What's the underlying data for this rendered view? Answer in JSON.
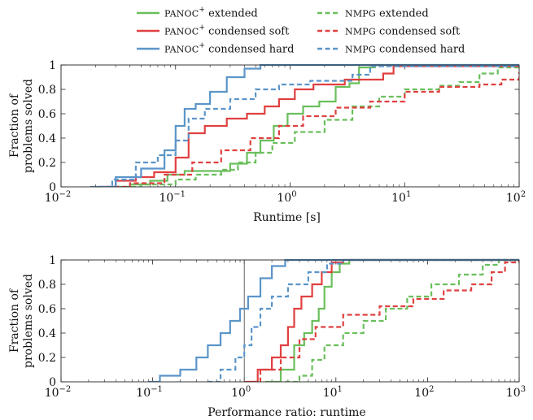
{
  "legend": [
    {
      "prefix": "PANOC",
      "sup": "+",
      "text": " extended",
      "color": "#6abf5c",
      "dash": false
    },
    {
      "prefix": "NMPG",
      "sup": "",
      "text": " extended",
      "color": "#6abf5c",
      "dash": true
    },
    {
      "prefix": "PANOC",
      "sup": "+",
      "text": " condensed soft",
      "color": "#e04040",
      "dash": false
    },
    {
      "prefix": "NMPG",
      "sup": "",
      "text": " condensed soft",
      "color": "#e04040",
      "dash": true
    },
    {
      "prefix": "PANOC",
      "sup": "+",
      "text": " condensed hard",
      "color": "#5b95c9",
      "dash": false
    },
    {
      "prefix": "NMPG",
      "sup": "",
      "text": " condensed hard",
      "color": "#5b95c9",
      "dash": true
    }
  ],
  "chart_data": [
    {
      "type": "line",
      "xscale": "log",
      "xlim": [
        0.01,
        100
      ],
      "ylim": [
        0,
        1
      ],
      "xticks": [
        {
          "v": 0.01,
          "base": "10",
          "exp": "−2"
        },
        {
          "v": 0.1,
          "base": "10",
          "exp": "−1"
        },
        {
          "v": 1,
          "base": "10",
          "exp": "0"
        },
        {
          "v": 10,
          "base": "10",
          "exp": "1"
        },
        {
          "v": 100,
          "base": "10",
          "exp": "2"
        }
      ],
      "yticks": [
        "0",
        "0.2",
        "0.4",
        "0.6",
        "0.8",
        "1"
      ],
      "xlabel": "Runtime [s]",
      "ylabel": [
        "Fraction of",
        "problems solved"
      ],
      "series": [
        {
          "name": "PANOC+ extended",
          "color": "#6abf5c",
          "dash": false,
          "points": [
            [
              0.028,
              0
            ],
            [
              0.04,
              0.02
            ],
            [
              0.06,
              0.05
            ],
            [
              0.085,
              0.1
            ],
            [
              0.12,
              0.13
            ],
            [
              0.2,
              0.13
            ],
            [
              0.3,
              0.19
            ],
            [
              0.42,
              0.28
            ],
            [
              0.55,
              0.38
            ],
            [
              0.72,
              0.5
            ],
            [
              0.95,
              0.6
            ],
            [
              1.3,
              0.66
            ],
            [
              1.8,
              0.7
            ],
            [
              2.5,
              0.82
            ],
            [
              3.3,
              0.85
            ],
            [
              4.0,
              0.98
            ],
            [
              5.5,
              1.0
            ],
            [
              100,
              1.0
            ]
          ]
        },
        {
          "name": "NMPG extended",
          "color": "#6abf5c",
          "dash": true,
          "points": [
            [
              0.03,
              0
            ],
            [
              0.05,
              0.02
            ],
            [
              0.1,
              0.06
            ],
            [
              0.15,
              0.1
            ],
            [
              0.25,
              0.14
            ],
            [
              0.35,
              0.2
            ],
            [
              0.5,
              0.28
            ],
            [
              0.7,
              0.36
            ],
            [
              1.1,
              0.45
            ],
            [
              2.0,
              0.55
            ],
            [
              3.5,
              0.66
            ],
            [
              6.0,
              0.74
            ],
            [
              10,
              0.8
            ],
            [
              20,
              0.83
            ],
            [
              30,
              0.86
            ],
            [
              45,
              0.93
            ],
            [
              65,
              0.98
            ],
            [
              100,
              0.98
            ]
          ]
        },
        {
          "name": "PANOC+ condensed soft",
          "color": "#e04040",
          "dash": false,
          "points": [
            [
              0.022,
              0
            ],
            [
              0.03,
              0.05
            ],
            [
              0.045,
              0.08
            ],
            [
              0.065,
              0.12
            ],
            [
              0.1,
              0.24
            ],
            [
              0.13,
              0.44
            ],
            [
              0.18,
              0.5
            ],
            [
              0.28,
              0.56
            ],
            [
              0.42,
              0.6
            ],
            [
              0.6,
              0.66
            ],
            [
              0.8,
              0.72
            ],
            [
              1.1,
              0.8
            ],
            [
              1.6,
              0.84
            ],
            [
              3.0,
              0.88
            ],
            [
              6.5,
              0.93
            ],
            [
              8.0,
              0.99
            ],
            [
              100,
              1.0
            ]
          ]
        },
        {
          "name": "NMPG condensed soft",
          "color": "#e04040",
          "dash": true,
          "points": [
            [
              0.025,
              0
            ],
            [
              0.04,
              0.03
            ],
            [
              0.08,
              0.1
            ],
            [
              0.14,
              0.2
            ],
            [
              0.25,
              0.3
            ],
            [
              0.45,
              0.4
            ],
            [
              0.8,
              0.5
            ],
            [
              1.3,
              0.58
            ],
            [
              2.5,
              0.65
            ],
            [
              5,
              0.7
            ],
            [
              10,
              0.78
            ],
            [
              20,
              0.82
            ],
            [
              45,
              0.84
            ],
            [
              70,
              0.88
            ],
            [
              100,
              0.94
            ]
          ]
        },
        {
          "name": "PANOC+ condensed hard",
          "color": "#5b95c9",
          "dash": false,
          "points": [
            [
              0.02,
              0
            ],
            [
              0.03,
              0.08
            ],
            [
              0.05,
              0.15
            ],
            [
              0.08,
              0.3
            ],
            [
              0.1,
              0.5
            ],
            [
              0.12,
              0.64
            ],
            [
              0.15,
              0.68
            ],
            [
              0.2,
              0.78
            ],
            [
              0.28,
              0.9
            ],
            [
              0.4,
              0.97
            ],
            [
              0.55,
              1.0
            ],
            [
              100,
              1.0
            ]
          ]
        },
        {
          "name": "NMPG condensed hard",
          "color": "#5b95c9",
          "dash": true,
          "points": [
            [
              0.018,
              0
            ],
            [
              0.028,
              0.06
            ],
            [
              0.045,
              0.2
            ],
            [
              0.07,
              0.26
            ],
            [
              0.1,
              0.38
            ],
            [
              0.13,
              0.56
            ],
            [
              0.18,
              0.64
            ],
            [
              0.3,
              0.72
            ],
            [
              0.5,
              0.8
            ],
            [
              0.8,
              0.84
            ],
            [
              1.5,
              0.87
            ],
            [
              3.5,
              0.92
            ],
            [
              5,
              0.99
            ],
            [
              100,
              1.0
            ]
          ]
        }
      ]
    },
    {
      "type": "line",
      "xscale": "log",
      "xlim": [
        0.01,
        1000
      ],
      "ylim": [
        0,
        1
      ],
      "vline": 1,
      "xticks": [
        {
          "v": 0.01,
          "base": "10",
          "exp": "−2"
        },
        {
          "v": 0.1,
          "base": "10",
          "exp": "−1"
        },
        {
          "v": 1,
          "base": "10",
          "exp": "0"
        },
        {
          "v": 10,
          "base": "10",
          "exp": "1"
        },
        {
          "v": 100,
          "base": "10",
          "exp": "2"
        },
        {
          "v": 1000,
          "base": "10",
          "exp": "3"
        }
      ],
      "yticks": [
        "0",
        "0.2",
        "0.4",
        "0.6",
        "0.8",
        "1"
      ],
      "xlabel": "Performance ratio: runtime",
      "ylabel": [
        "Fraction of",
        "problems solved"
      ],
      "series": [
        {
          "name": "PANOC+ extended",
          "color": "#6abf5c",
          "dash": false,
          "points": [
            [
              1.7,
              0
            ],
            [
              2.5,
              0.1
            ],
            [
              3.5,
              0.3
            ],
            [
              4.5,
              0.4
            ],
            [
              5.5,
              0.5
            ],
            [
              6.5,
              0.6
            ],
            [
              7.5,
              0.78
            ],
            [
              9,
              0.9
            ],
            [
              11,
              0.97
            ],
            [
              14,
              1.0
            ],
            [
              1000,
              1.0
            ]
          ]
        },
        {
          "name": "NMPG extended",
          "color": "#6abf5c",
          "dash": true,
          "points": [
            [
              2.8,
              0
            ],
            [
              4,
              0.05
            ],
            [
              5.5,
              0.18
            ],
            [
              7.5,
              0.3
            ],
            [
              12,
              0.4
            ],
            [
              20,
              0.5
            ],
            [
              35,
              0.6
            ],
            [
              60,
              0.7
            ],
            [
              110,
              0.8
            ],
            [
              220,
              0.88
            ],
            [
              400,
              0.96
            ],
            [
              600,
              1.0
            ],
            [
              1000,
              1.0
            ]
          ]
        },
        {
          "name": "PANOC+ condensed soft",
          "color": "#e04040",
          "dash": false,
          "points": [
            [
              1.1,
              0
            ],
            [
              1.4,
              0.1
            ],
            [
              2.0,
              0.2
            ],
            [
              2.5,
              0.3
            ],
            [
              3.0,
              0.45
            ],
            [
              3.5,
              0.6
            ],
            [
              4.2,
              0.7
            ],
            [
              5.5,
              0.8
            ],
            [
              7,
              0.9
            ],
            [
              9,
              0.98
            ],
            [
              12,
              1.0
            ],
            [
              1000,
              1.0
            ]
          ]
        },
        {
          "name": "NMPG condensed soft",
          "color": "#e04040",
          "dash": true,
          "points": [
            [
              1.0,
              0
            ],
            [
              1.5,
              0.1
            ],
            [
              2.5,
              0.2
            ],
            [
              4,
              0.35
            ],
            [
              6,
              0.45
            ],
            [
              12,
              0.55
            ],
            [
              30,
              0.62
            ],
            [
              70,
              0.68
            ],
            [
              150,
              0.75
            ],
            [
              300,
              0.8
            ],
            [
              500,
              0.9
            ],
            [
              700,
              0.98
            ],
            [
              1000,
              1.0
            ]
          ]
        },
        {
          "name": "PANOC+ condensed hard",
          "color": "#5b95c9",
          "dash": false,
          "points": [
            [
              0.09,
              0
            ],
            [
              0.12,
              0.05
            ],
            [
              0.2,
              0.1
            ],
            [
              0.3,
              0.2
            ],
            [
              0.4,
              0.3
            ],
            [
              0.55,
              0.4
            ],
            [
              0.7,
              0.5
            ],
            [
              0.9,
              0.6
            ],
            [
              1.1,
              0.7
            ],
            [
              1.5,
              0.85
            ],
            [
              2.0,
              0.95
            ],
            [
              2.8,
              1.0
            ],
            [
              1000,
              1.0
            ]
          ]
        },
        {
          "name": "NMPG condensed hard",
          "color": "#5b95c9",
          "dash": true,
          "points": [
            [
              0.4,
              0
            ],
            [
              0.55,
              0.1
            ],
            [
              0.8,
              0.2
            ],
            [
              1.0,
              0.3
            ],
            [
              1.2,
              0.45
            ],
            [
              1.5,
              0.6
            ],
            [
              2.0,
              0.7
            ],
            [
              3.0,
              0.8
            ],
            [
              5,
              0.9
            ],
            [
              8,
              0.97
            ],
            [
              12,
              1.0
            ],
            [
              1000,
              1.0
            ]
          ]
        }
      ]
    }
  ]
}
